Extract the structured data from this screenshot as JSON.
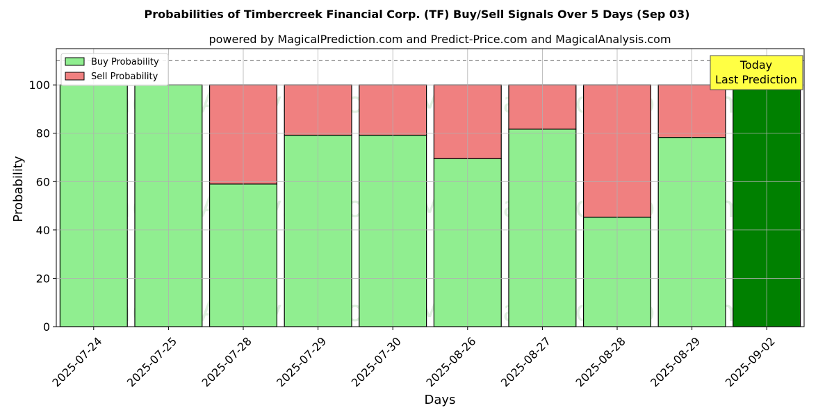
{
  "chart_data": {
    "type": "bar",
    "stacked": true,
    "title": "Probabilities of Timbercreek Financial Corp. (TF) Buy/Sell Signals Over 5 Days (Sep 03)",
    "subtitle": "powered by MagicalPrediction.com and Predict-Price.com and MagicalAnalysis.com",
    "xlabel": "Days",
    "ylabel": "Probability",
    "ylim": [
      0,
      115
    ],
    "yticks": [
      0,
      20,
      40,
      60,
      80,
      100
    ],
    "grid": true,
    "legend_position": "top-left",
    "reference_line": {
      "y": 110,
      "style": "dashed",
      "color": "#808080"
    },
    "categories": [
      "2025-07-24",
      "2025-07-25",
      "2025-07-28",
      "2025-07-29",
      "2025-07-30",
      "2025-08-26",
      "2025-08-27",
      "2025-08-28",
      "2025-08-29",
      "2025-09-02"
    ],
    "series": [
      {
        "name": "Buy Probability",
        "color": "#90ee90",
        "values": [
          100,
          100,
          59,
          79.2,
          79.2,
          69.5,
          81.7,
          45.3,
          78.3,
          100
        ]
      },
      {
        "name": "Sell Probability",
        "color": "#f08080",
        "values": [
          0,
          0,
          41,
          20.8,
          20.8,
          30.5,
          18.3,
          54.7,
          21.7,
          0
        ]
      }
    ],
    "highlight": {
      "index": 9,
      "color": "#008000"
    },
    "annotation": {
      "lines": [
        "Today",
        "Last Prediction"
      ],
      "background": "#ffff44"
    },
    "watermarks": [
      "MagicalAnalysis.com",
      "MagicalPrediction.com"
    ]
  }
}
